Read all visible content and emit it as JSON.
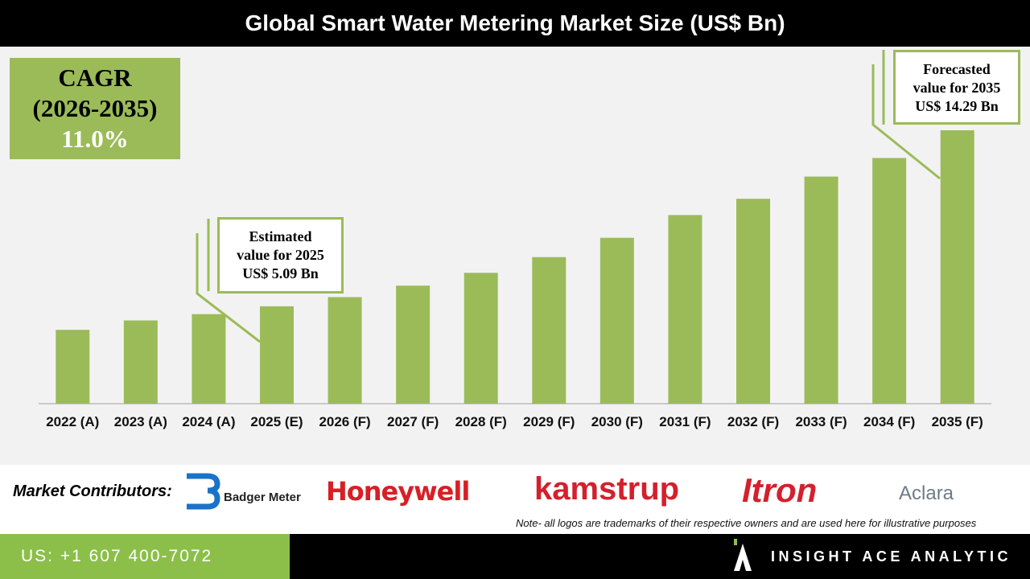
{
  "header": {
    "title": "Global Smart Water Metering Market Size (US$ Bn)"
  },
  "cagr": {
    "label": "CAGR",
    "period": "(2026-2035)",
    "value": "11.0%"
  },
  "annotations": [
    {
      "lines": [
        "Estimated",
        "value for 2025",
        "US$ 5.09 Bn"
      ]
    },
    {
      "lines": [
        "Forecasted",
        "value for 2035",
        "US$ 14.29 Bn"
      ]
    }
  ],
  "chart_data": {
    "type": "bar",
    "color": "#9bbb59",
    "categories": [
      "2022 (A)",
      "2023 (A)",
      "2024 (A)",
      "2025 (E)",
      "2026 (F)",
      "2027 (F)",
      "2028 (F)",
      "2029 (F)",
      "2030 (F)",
      "2031 (F)",
      "2032 (F)",
      "2033 (F)",
      "2034 (F)",
      "2035 (F)"
    ],
    "values": [
      3.86,
      4.35,
      4.68,
      5.09,
      5.57,
      6.17,
      6.84,
      7.66,
      8.67,
      9.86,
      10.71,
      11.87,
      12.84,
      14.29
    ]
  },
  "contributors": {
    "label": "Market Contributors:",
    "logos": [
      "Badger Meter",
      "Honeywell",
      "kamstrup",
      "Itron",
      "Aclara"
    ],
    "note": "Note- all logos are trademarks of their respective owners and are used here for illustrative purposes"
  },
  "footer": {
    "phone": "US: +1 607 400-7072",
    "brand": "INSIGHT ACE ANALYTIC"
  }
}
